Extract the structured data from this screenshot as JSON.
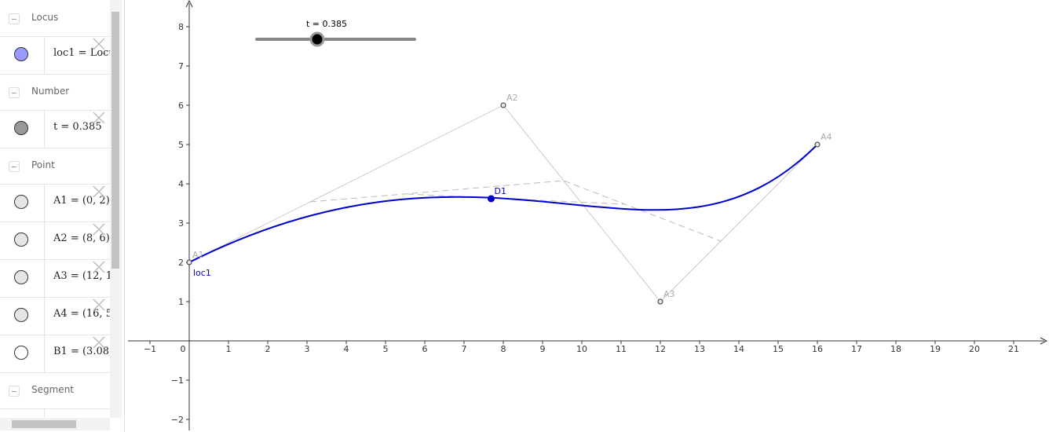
{
  "algebra_view": {
    "sections": [
      {
        "title": "Locus",
        "items": [
          "loc1 = Locu"
        ]
      },
      {
        "title": "Number",
        "items": [
          "t = 0.385"
        ]
      },
      {
        "title": "Point",
        "items": [
          "A1 = (0, 2)",
          "A2 = (8, 6)",
          "A3 = (12, 1",
          "A4 = (16, 5",
          "B1 = (3.08,"
        ]
      },
      {
        "title": "Segment"
      }
    ]
  },
  "graphics": {
    "slider_label": "t = 0.385",
    "x_axis_labels": [
      "−1",
      "0",
      "1",
      "2",
      "3",
      "4",
      "5",
      "6",
      "7",
      "8",
      "9",
      "10",
      "11",
      "12",
      "13",
      "14",
      "15",
      "16",
      "17",
      "18",
      "19",
      "20",
      "21"
    ],
    "y_axis_labels": [
      "8",
      "7",
      "6",
      "5",
      "4",
      "3",
      "2",
      "1",
      "−1",
      "−2"
    ],
    "point_labels": [
      "A1",
      "A2",
      "A3",
      "A4",
      "D1"
    ],
    "locus_label": "loc1"
  }
}
